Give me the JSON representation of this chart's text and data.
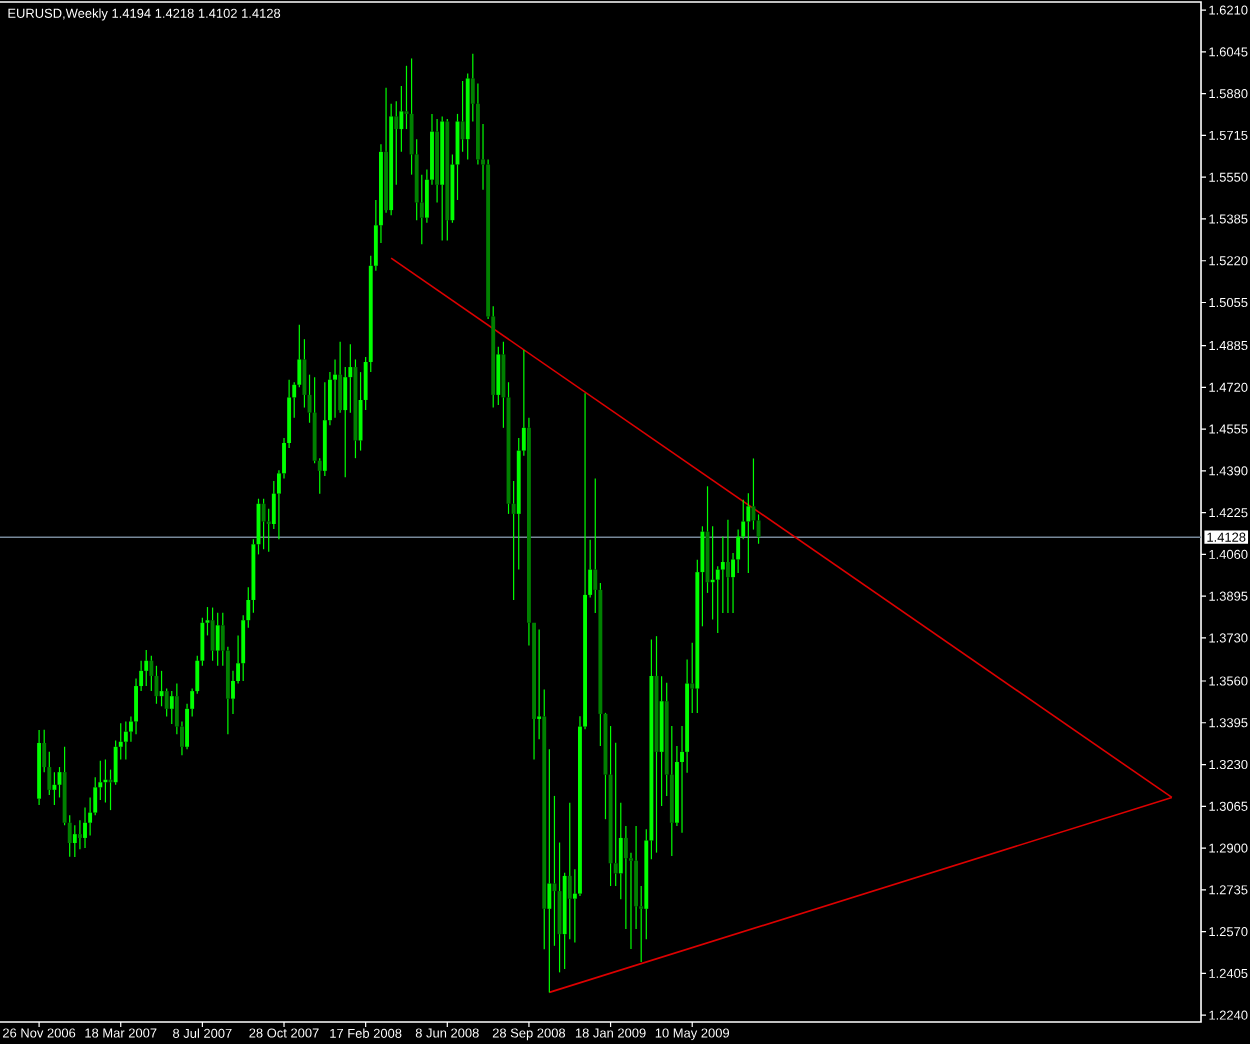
{
  "chart_data": {
    "type": "candlestick",
    "title": "EURUSD,Weekly 1.4194 1.4218 1.4102 1.4128",
    "x": [
      "2006-11-26",
      "2006-12-03",
      "2006-12-10",
      "2006-12-17",
      "2006-12-24",
      "2006-12-31",
      "2007-01-07",
      "2007-01-14",
      "2007-01-21",
      "2007-01-28",
      "2007-02-04",
      "2007-02-11",
      "2007-02-18",
      "2007-02-25",
      "2007-03-04",
      "2007-03-11",
      "2007-03-18",
      "2007-03-25",
      "2007-04-01",
      "2007-04-08",
      "2007-04-15",
      "2007-04-22",
      "2007-04-29",
      "2007-05-06",
      "2007-05-13",
      "2007-05-20",
      "2007-05-27",
      "2007-06-03",
      "2007-06-10",
      "2007-06-17",
      "2007-06-24",
      "2007-07-01",
      "2007-07-08",
      "2007-07-15",
      "2007-07-22",
      "2007-07-29",
      "2007-08-05",
      "2007-08-12",
      "2007-08-19",
      "2007-08-26",
      "2007-09-02",
      "2007-09-09",
      "2007-09-16",
      "2007-09-23",
      "2007-09-30",
      "2007-10-07",
      "2007-10-14",
      "2007-10-21",
      "2007-10-28",
      "2007-11-04",
      "2007-11-11",
      "2007-11-18",
      "2007-11-25",
      "2007-12-02",
      "2007-12-09",
      "2007-12-16",
      "2007-12-23",
      "2007-12-30",
      "2008-01-06",
      "2008-01-13",
      "2008-01-20",
      "2008-01-27",
      "2008-02-03",
      "2008-02-10",
      "2008-02-17",
      "2008-02-24",
      "2008-03-02",
      "2008-03-09",
      "2008-03-16",
      "2008-03-23",
      "2008-03-30",
      "2008-04-06",
      "2008-04-13",
      "2008-04-20",
      "2008-04-27",
      "2008-05-04",
      "2008-05-11",
      "2008-05-18",
      "2008-05-25",
      "2008-06-01",
      "2008-06-08",
      "2008-06-15",
      "2008-06-22",
      "2008-06-29",
      "2008-07-06",
      "2008-07-13",
      "2008-07-20",
      "2008-07-27",
      "2008-08-03",
      "2008-08-10",
      "2008-08-17",
      "2008-08-24",
      "2008-08-31",
      "2008-09-07",
      "2008-09-14",
      "2008-09-21",
      "2008-09-28",
      "2008-10-05",
      "2008-10-12",
      "2008-10-19",
      "2008-10-26",
      "2008-11-02",
      "2008-11-09",
      "2008-11-16",
      "2008-11-23",
      "2008-11-30",
      "2008-12-07",
      "2008-12-14",
      "2008-12-21",
      "2008-12-28",
      "2009-01-04",
      "2009-01-11",
      "2009-01-18",
      "2009-01-25",
      "2009-02-01",
      "2009-02-08",
      "2009-02-15",
      "2009-02-22",
      "2009-03-01",
      "2009-03-08",
      "2009-03-15",
      "2009-03-22",
      "2009-03-29",
      "2009-04-05",
      "2009-04-12",
      "2009-04-19",
      "2009-04-26",
      "2009-05-03",
      "2009-05-10",
      "2009-05-17",
      "2009-05-24",
      "2009-05-31",
      "2009-06-07",
      "2009-06-14",
      "2009-06-21",
      "2009-06-28",
      "2009-07-05",
      "2009-07-12",
      "2009-07-19",
      "2009-07-26",
      "2009-08-02",
      "2009-08-09"
    ],
    "ohlc": [
      [
        1.3095,
        1.3366,
        1.307,
        1.3315
      ],
      [
        1.3315,
        1.3367,
        1.32,
        1.322
      ],
      [
        1.322,
        1.328,
        1.311,
        1.313
      ],
      [
        1.313,
        1.32,
        1.307,
        1.315
      ],
      [
        1.315,
        1.322,
        1.31,
        1.32
      ],
      [
        1.32,
        1.33,
        1.299,
        1.3
      ],
      [
        1.3,
        1.303,
        1.2866,
        1.292
      ],
      [
        1.292,
        1.299,
        1.2865,
        1.2955
      ],
      [
        1.2955,
        1.301,
        1.2895,
        1.294
      ],
      [
        1.294,
        1.306,
        1.29,
        1.3
      ],
      [
        1.3,
        1.31,
        1.295,
        1.304
      ],
      [
        1.304,
        1.318,
        1.303,
        1.314
      ],
      [
        1.314,
        1.3245,
        1.309,
        1.316
      ],
      [
        1.316,
        1.325,
        1.308,
        1.317
      ],
      [
        1.317,
        1.321,
        1.305,
        1.316
      ],
      [
        1.316,
        1.3325,
        1.315,
        1.33
      ],
      [
        1.33,
        1.3393,
        1.325,
        1.332
      ],
      [
        1.332,
        1.34,
        1.325,
        1.336
      ],
      [
        1.336,
        1.342,
        1.332,
        1.34
      ],
      [
        1.34,
        1.357,
        1.335,
        1.354
      ],
      [
        1.354,
        1.364,
        1.352,
        1.36
      ],
      [
        1.36,
        1.3682,
        1.354,
        1.364
      ],
      [
        1.364,
        1.366,
        1.352,
        1.358
      ],
      [
        1.358,
        1.362,
        1.347,
        1.35
      ],
      [
        1.35,
        1.36,
        1.346,
        1.352
      ],
      [
        1.352,
        1.353,
        1.342,
        1.345
      ],
      [
        1.345,
        1.352,
        1.339,
        1.35
      ],
      [
        1.35,
        1.355,
        1.335,
        1.338
      ],
      [
        1.338,
        1.34,
        1.3267,
        1.33
      ],
      [
        1.33,
        1.347,
        1.329,
        1.345
      ],
      [
        1.345,
        1.353,
        1.342,
        1.352
      ],
      [
        1.352,
        1.366,
        1.351,
        1.364
      ],
      [
        1.364,
        1.381,
        1.362,
        1.379
      ],
      [
        1.379,
        1.3852,
        1.374,
        1.38
      ],
      [
        1.38,
        1.385,
        1.364,
        1.368
      ],
      [
        1.368,
        1.383,
        1.362,
        1.378
      ],
      [
        1.378,
        1.383,
        1.362,
        1.368
      ],
      [
        1.368,
        1.3695,
        1.335,
        1.349
      ],
      [
        1.349,
        1.36,
        1.343,
        1.356
      ],
      [
        1.356,
        1.374,
        1.355,
        1.363
      ],
      [
        1.363,
        1.382,
        1.356,
        1.38
      ],
      [
        1.38,
        1.393,
        1.377,
        1.388
      ],
      [
        1.388,
        1.412,
        1.383,
        1.41
      ],
      [
        1.41,
        1.428,
        1.406,
        1.426
      ],
      [
        1.426,
        1.428,
        1.408,
        1.419
      ],
      [
        1.419,
        1.424,
        1.407,
        1.418
      ],
      [
        1.418,
        1.435,
        1.416,
        1.43
      ],
      [
        1.43,
        1.4392,
        1.412,
        1.438
      ],
      [
        1.438,
        1.452,
        1.436,
        1.45
      ],
      [
        1.45,
        1.475,
        1.448,
        1.468
      ],
      [
        1.468,
        1.474,
        1.46,
        1.473
      ],
      [
        1.473,
        1.4967,
        1.472,
        1.483
      ],
      [
        1.483,
        1.491,
        1.464,
        1.469
      ],
      [
        1.469,
        1.477,
        1.458,
        1.462
      ],
      [
        1.462,
        1.476,
        1.442,
        1.443
      ],
      [
        1.443,
        1.444,
        1.43,
        1.439
      ],
      [
        1.439,
        1.474,
        1.437,
        1.459
      ],
      [
        1.459,
        1.478,
        1.457,
        1.475
      ],
      [
        1.475,
        1.483,
        1.46,
        1.477
      ],
      [
        1.477,
        1.49,
        1.462,
        1.463
      ],
      [
        1.463,
        1.48,
        1.4365,
        1.476
      ],
      [
        1.476,
        1.489,
        1.462,
        1.48
      ],
      [
        1.48,
        1.483,
        1.444,
        1.451
      ],
      [
        1.451,
        1.478,
        1.447,
        1.467
      ],
      [
        1.467,
        1.484,
        1.463,
        1.482
      ],
      [
        1.482,
        1.524,
        1.478,
        1.52
      ],
      [
        1.52,
        1.546,
        1.518,
        1.536
      ],
      [
        1.536,
        1.568,
        1.529,
        1.565
      ],
      [
        1.565,
        1.5903,
        1.541,
        1.542
      ],
      [
        1.542,
        1.584,
        1.54,
        1.579
      ],
      [
        1.579,
        1.585,
        1.552,
        1.574
      ],
      [
        1.574,
        1.591,
        1.565,
        1.581
      ],
      [
        1.581,
        1.599,
        1.574,
        1.58
      ],
      [
        1.58,
        1.6019,
        1.556,
        1.564
      ],
      [
        1.564,
        1.57,
        1.538,
        1.545
      ],
      [
        1.545,
        1.556,
        1.5285,
        1.539
      ],
      [
        1.539,
        1.558,
        1.537,
        1.554
      ],
      [
        1.554,
        1.58,
        1.552,
        1.573
      ],
      [
        1.573,
        1.578,
        1.545,
        1.552
      ],
      [
        1.552,
        1.579,
        1.53,
        1.577
      ],
      [
        1.577,
        1.578,
        1.53,
        1.538
      ],
      [
        1.538,
        1.564,
        1.537,
        1.56
      ],
      [
        1.56,
        1.58,
        1.546,
        1.577
      ],
      [
        1.577,
        1.593,
        1.565,
        1.57
      ],
      [
        1.57,
        1.596,
        1.562,
        1.594
      ],
      [
        1.594,
        1.6038,
        1.577,
        1.584
      ],
      [
        1.584,
        1.592,
        1.56,
        1.562
      ],
      [
        1.562,
        1.576,
        1.55,
        1.56
      ],
      [
        1.56,
        1.562,
        1.499,
        1.5
      ],
      [
        1.5,
        1.504,
        1.464,
        1.469
      ],
      [
        1.469,
        1.488,
        1.465,
        1.485
      ],
      [
        1.485,
        1.49,
        1.456,
        1.468
      ],
      [
        1.468,
        1.474,
        1.422,
        1.426
      ],
      [
        1.426,
        1.435,
        1.388,
        1.422
      ],
      [
        1.422,
        1.452,
        1.4,
        1.447
      ],
      [
        1.447,
        1.4867,
        1.445,
        1.456
      ],
      [
        1.456,
        1.46,
        1.37,
        1.379
      ],
      [
        1.379,
        1.379,
        1.325,
        1.341
      ],
      [
        1.341,
        1.3763,
        1.333,
        1.342
      ],
      [
        1.342,
        1.3526,
        1.25,
        1.266
      ],
      [
        1.266,
        1.329,
        1.233,
        1.276
      ],
      [
        1.276,
        1.3106,
        1.2514,
        1.273
      ],
      [
        1.273,
        1.2922,
        1.2409,
        1.256
      ],
      [
        1.256,
        1.2803,
        1.2422,
        1.279
      ],
      [
        1.279,
        1.3079,
        1.254,
        1.27
      ],
      [
        1.27,
        1.2816,
        1.2527,
        1.272
      ],
      [
        1.272,
        1.3421,
        1.2711,
        1.338
      ],
      [
        1.338,
        1.4697,
        1.3369,
        1.39
      ],
      [
        1.39,
        1.4118,
        1.389,
        1.4
      ],
      [
        1.4,
        1.436,
        1.3829,
        1.392
      ],
      [
        1.392,
        1.3947,
        1.3303,
        1.343
      ],
      [
        1.343,
        1.3434,
        1.3014,
        1.319
      ],
      [
        1.319,
        1.3382,
        1.275,
        1.284
      ],
      [
        1.284,
        1.3316,
        1.275,
        1.28
      ],
      [
        1.28,
        1.3079,
        1.2698,
        1.294
      ],
      [
        1.294,
        1.2987,
        1.258,
        1.286
      ],
      [
        1.286,
        1.2882,
        1.2501,
        1.285
      ],
      [
        1.285,
        1.2987,
        1.258,
        1.267
      ],
      [
        1.267,
        1.275,
        1.245,
        1.266
      ],
      [
        1.266,
        1.2974,
        1.254,
        1.293
      ],
      [
        1.293,
        1.3724,
        1.2856,
        1.358
      ],
      [
        1.358,
        1.3737,
        1.2882,
        1.328
      ],
      [
        1.328,
        1.3579,
        1.3066,
        1.348
      ],
      [
        1.348,
        1.3553,
        1.3106,
        1.319
      ],
      [
        1.319,
        1.3382,
        1.2869,
        1.3
      ],
      [
        1.3,
        1.3303,
        1.2987,
        1.324
      ],
      [
        1.324,
        1.3382,
        1.2961,
        1.328
      ],
      [
        1.328,
        1.3645,
        1.3198,
        1.355
      ],
      [
        1.355,
        1.3711,
        1.3434,
        1.353
      ],
      [
        1.353,
        1.4039,
        1.3434,
        1.399
      ],
      [
        1.399,
        1.4171,
        1.3776,
        1.415
      ],
      [
        1.415,
        1.4329,
        1.3908,
        1.395
      ],
      [
        1.395,
        1.4171,
        1.3803,
        1.396
      ],
      [
        1.396,
        1.4013,
        1.375,
        1.4
      ],
      [
        1.4,
        1.4131,
        1.3829,
        1.403
      ],
      [
        1.403,
        1.4197,
        1.3829,
        1.397
      ],
      [
        1.397,
        1.4066,
        1.3829,
        1.404
      ],
      [
        1.404,
        1.4158,
        1.3987,
        1.413
      ],
      [
        1.413,
        1.4276,
        1.412,
        1.419
      ],
      [
        1.419,
        1.4302,
        1.3987,
        1.425
      ],
      [
        1.425,
        1.4439,
        1.4158,
        1.4194
      ],
      [
        1.4194,
        1.4218,
        1.4102,
        1.4128
      ]
    ],
    "color": "#00ff00",
    "colors": [
      "#00ff00",
      "#008000",
      "#008000",
      "#00ff00",
      "#00ff00",
      "#008000",
      "#008000",
      "#00ff00",
      "#008000",
      "#00ff00",
      "#00ff00",
      "#00ff00",
      "#00ff00",
      "#00ff00",
      "#008000",
      "#00ff00",
      "#00ff00",
      "#00ff00",
      "#00ff00",
      "#00ff00",
      "#00ff00",
      "#00ff00",
      "#008000",
      "#008000",
      "#00ff00",
      "#008000",
      "#00ff00",
      "#008000",
      "#008000",
      "#00ff00",
      "#00ff00",
      "#00ff00",
      "#00ff00",
      "#00ff00",
      "#008000",
      "#00ff00",
      "#008000",
      "#008000",
      "#00ff00",
      "#00ff00",
      "#00ff00",
      "#00ff00",
      "#00ff00",
      "#00ff00",
      "#008000",
      "#008000",
      "#00ff00",
      "#00ff00",
      "#00ff00",
      "#00ff00",
      "#00ff00",
      "#00ff00",
      "#008000",
      "#008000",
      "#008000",
      "#008000",
      "#00ff00",
      "#00ff00",
      "#00ff00",
      "#008000",
      "#00ff00",
      "#00ff00",
      "#008000",
      "#00ff00",
      "#00ff00",
      "#00ff00",
      "#00ff00",
      "#00ff00",
      "#008000",
      "#00ff00",
      "#008000",
      "#00ff00",
      "#008000",
      "#008000",
      "#008000",
      "#008000",
      "#00ff00",
      "#00ff00",
      "#008000",
      "#00ff00",
      "#008000",
      "#00ff00",
      "#00ff00",
      "#008000",
      "#00ff00",
      "#008000",
      "#008000",
      "#008000",
      "#008000",
      "#008000",
      "#00ff00",
      "#008000",
      "#008000",
      "#008000",
      "#00ff00",
      "#00ff00",
      "#008000",
      "#008000",
      "#00ff00",
      "#008000",
      "#00ff00",
      "#008000",
      "#008000",
      "#00ff00",
      "#008000",
      "#00ff00",
      "#00ff00",
      "#00ff00",
      "#00ff00",
      "#008000",
      "#008000",
      "#008000",
      "#008000",
      "#008000",
      "#00ff00",
      "#008000",
      "#008000",
      "#008000",
      "#008000",
      "#00ff00",
      "#00ff00",
      "#008000",
      "#00ff00",
      "#008000",
      "#008000",
      "#00ff00",
      "#00ff00",
      "#00ff00",
      "#008000",
      "#00ff00",
      "#00ff00",
      "#008000",
      "#00ff00",
      "#00ff00",
      "#00ff00",
      "#008000",
      "#00ff00",
      "#00ff00",
      "#00ff00",
      "#00ff00",
      "#008000",
      "#008000"
    ],
    "series": [
      {
        "type": "line",
        "color": "#dd0000",
        "x": [
          "2008-03-23",
          "2011-02-27"
        ],
        "values": [
          1.523,
          1.31
        ]
      },
      {
        "type": "line",
        "color": "#dd0000",
        "x": [
          "2008-10-26",
          "2011-02-27"
        ],
        "values": [
          1.233,
          1.31
        ]
      }
    ],
    "xlim": [
      "2006-10-02",
      "2011-04-08"
    ],
    "xticks": [
      {
        "value": "2006-11-26",
        "label": "26 Nov 2006"
      },
      {
        "value": "2007-03-18",
        "label": "18 Mar 2007"
      },
      {
        "value": "2007-07-08",
        "label": "8 Jul 2007"
      },
      {
        "value": "2007-10-28",
        "label": "28 Oct 2007"
      },
      {
        "value": "2008-02-17",
        "label": "17 Feb 2008"
      },
      {
        "value": "2008-06-08",
        "label": "8 Jun 2008"
      },
      {
        "value": "2008-09-28",
        "label": "28 Sep 2008"
      },
      {
        "value": "2009-01-18",
        "label": "18 Jan 2009"
      },
      {
        "value": "2009-05-10",
        "label": "10 May 2009"
      }
    ],
    "ylim": [
      1.2213,
      1.6242
    ],
    "yticks": [
      {
        "value": 1.224,
        "label": "1.2240"
      },
      1.2405,
      {
        "value": 1.257,
        "label": "1.2570"
      },
      1.2735,
      {
        "value": 1.29,
        "label": "1.2900"
      },
      1.3065,
      {
        "value": 1.323,
        "label": "1.3230"
      },
      1.3395,
      {
        "value": 1.356,
        "label": "1.3560"
      },
      {
        "value": 1.373,
        "label": "1.3730"
      },
      1.3895,
      {
        "value": 1.406,
        "label": "1.4060"
      },
      1.4225,
      {
        "value": 1.439,
        "label": "1.4390"
      },
      1.4555,
      {
        "value": 1.472,
        "label": "1.4720"
      },
      1.4885,
      1.5055,
      {
        "value": 1.522,
        "label": "1.5220"
      },
      1.5385,
      {
        "value": 1.555,
        "label": "1.5550"
      },
      1.5715,
      {
        "value": 1.588,
        "label": "1.5880"
      },
      1.6045,
      {
        "value": 1.621,
        "label": "1.6210"
      }
    ],
    "ref_lines": [
      {
        "axis": "y",
        "value": 1.4128,
        "label": "1.4128",
        "color": "#778899"
      }
    ]
  }
}
